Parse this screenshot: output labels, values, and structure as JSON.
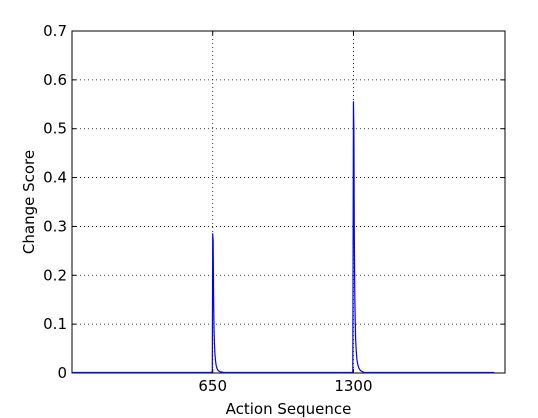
{
  "chart_data": {
    "type": "line",
    "title": "",
    "xlabel": "Action Sequence",
    "ylabel": "Change Score",
    "xlim": [
      0,
      2000
    ],
    "ylim": [
      0,
      0.7
    ],
    "xticks": [
      650,
      1300
    ],
    "xtick_labels": [
      "650",
      "1300"
    ],
    "yticks": [
      0,
      0.1,
      0.2,
      0.3,
      0.4,
      0.5,
      0.6,
      0.7
    ],
    "ytick_labels": [
      "0",
      "0.1",
      "0.2",
      "0.3",
      "0.4",
      "0.5",
      "0.6",
      "0.7"
    ],
    "grid": true,
    "series": [
      {
        "color": "#0000ff",
        "x": [
          0,
          640,
          648,
          650,
          652,
          654,
          656,
          658,
          660,
          663,
          666,
          670,
          675,
          682,
          690,
          700,
          1000,
          1290,
          1297,
          1300,
          1302,
          1304,
          1306,
          1308,
          1310,
          1313,
          1316,
          1320,
          1325,
          1332,
          1340,
          1350,
          1950
        ],
        "y": [
          0.001,
          0.001,
          0.002,
          0.285,
          0.27,
          0.16,
          0.09,
          0.06,
          0.04,
          0.025,
          0.015,
          0.009,
          0.005,
          0.003,
          0.002,
          0.001,
          0.001,
          0.001,
          0.002,
          0.555,
          0.5,
          0.28,
          0.17,
          0.11,
          0.07,
          0.045,
          0.028,
          0.017,
          0.01,
          0.005,
          0.003,
          0.001,
          0.001
        ]
      }
    ]
  }
}
